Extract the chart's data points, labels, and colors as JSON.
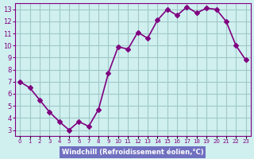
{
  "x": [
    0,
    1,
    2,
    3,
    4,
    5,
    6,
    7,
    8,
    9,
    10,
    11,
    12,
    13,
    14,
    15,
    16,
    17,
    18,
    19,
    20,
    21,
    22,
    23
  ],
  "y": [
    7.0,
    6.5,
    5.5,
    4.5,
    3.7,
    3.0,
    3.7,
    3.3,
    4.7,
    7.7,
    9.9,
    9.7,
    11.1,
    10.6,
    12.1,
    13.0,
    12.5,
    13.2,
    12.7,
    13.1,
    13.0,
    12.0,
    10.0,
    8.8
  ],
  "line_color": "#800080",
  "marker": "D",
  "marker_size": 3,
  "bg_color": "#d0f0f0",
  "grid_color": "#a0c8c8",
  "xlabel": "Windchill (Refroidissement éolien,°C)",
  "xlabel_bg": "#7070c0",
  "xlabel_color": "#ffffff",
  "ylabel_ticks": [
    3,
    4,
    5,
    6,
    7,
    8,
    9,
    10,
    11,
    12,
    13
  ],
  "xtick_labels": [
    "0",
    "1",
    "2",
    "3",
    "4",
    "5",
    "6",
    "7",
    "8",
    "9",
    "10",
    "11",
    "12",
    "13",
    "14",
    "15",
    "16",
    "17",
    "18",
    "19",
    "20",
    "21",
    "22",
    "23"
  ],
  "ylim": [
    2.5,
    13.5
  ],
  "xlim": [
    -0.5,
    23.5
  ]
}
